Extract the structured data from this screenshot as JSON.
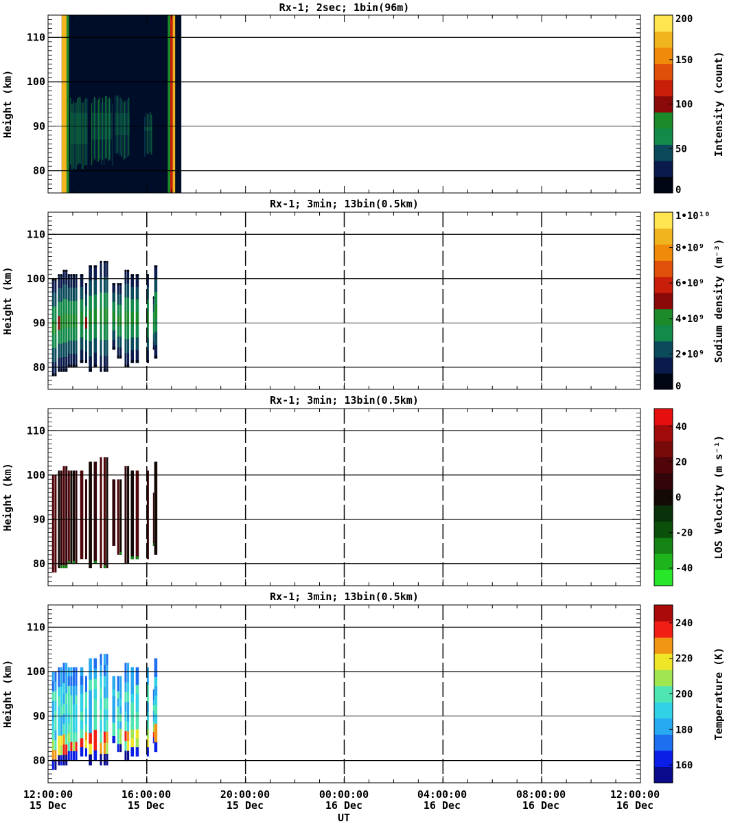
{
  "chart_data": [
    {
      "type": "heatmap",
      "title": "Rx-1;  2sec; 1bin(96m)",
      "ylabel": "Height (km)",
      "ylim": [
        75,
        115
      ],
      "yticks": [
        80,
        90,
        100,
        110
      ],
      "colorbar": {
        "label": "Intensity (count)",
        "range": [
          0,
          200
        ],
        "ticks": [
          "0",
          "50",
          "100",
          "150",
          "200"
        ],
        "tick_values": [
          0,
          50,
          100,
          150,
          200
        ],
        "colors": [
          "#000514",
          "#0a1a4a",
          "#0b4a5a",
          "#138a4a",
          "#1a8a2a",
          "#8a0a0a",
          "#c81e0a",
          "#e0500a",
          "#f08a0a",
          "#f0b41e",
          "#ffe650"
        ]
      },
      "background": "#000d28",
      "observation_window_hours": [
        0.4,
        5.4
      ],
      "bands": [
        {
          "start": 0.4,
          "end": 0.55,
          "top": 115,
          "bottom": 75,
          "color": "#ffffff"
        },
        {
          "start": 0.55,
          "end": 0.75,
          "top": 115,
          "bottom": 75,
          "color": "#f0b41e"
        },
        {
          "start": 0.75,
          "end": 0.85,
          "top": 115,
          "bottom": 75,
          "color": "#1a8a2a"
        },
        {
          "start": 4.85,
          "end": 4.95,
          "top": 115,
          "bottom": 75,
          "color": "#1a8a2a"
        },
        {
          "start": 4.95,
          "end": 5.05,
          "top": 115,
          "bottom": 75,
          "color": "#c81e0a"
        },
        {
          "start": 5.05,
          "end": 5.15,
          "top": 115,
          "bottom": 75,
          "color": "#f0b41e"
        }
      ],
      "layer_segments": [
        {
          "start": 0.9,
          "end": 1.6,
          "top": 97,
          "bottom": 82
        },
        {
          "start": 1.75,
          "end": 2.6,
          "top": 97,
          "bottom": 83
        },
        {
          "start": 2.7,
          "end": 3.3,
          "top": 97,
          "bottom": 84
        },
        {
          "start": 3.9,
          "end": 4.2,
          "top": 94,
          "bottom": 85
        }
      ]
    },
    {
      "type": "heatmap",
      "title": "Rx-1; 3min; 13bin(0.5km)",
      "ylabel": "Height (km)",
      "ylim": [
        75,
        115
      ],
      "yticks": [
        80,
        90,
        100,
        110
      ],
      "colorbar": {
        "label": "Sodium density (m⁻³)",
        "range": [
          0,
          10000000000
        ],
        "ticks": [
          "0",
          "2•10⁹",
          "4•10⁹",
          "6•10⁹",
          "8•10⁹",
          "1•10¹⁰"
        ],
        "tick_values": [
          0,
          2000000000,
          4000000000,
          6000000000,
          8000000000,
          10000000000
        ],
        "colors": [
          "#000514",
          "#0a1a4a",
          "#0b4a5a",
          "#138a4a",
          "#1a8a2a",
          "#8a0a0a",
          "#c81e0a",
          "#e0500a",
          "#f08a0a",
          "#f0b41e",
          "#ffe650"
        ]
      },
      "profiles": [
        {
          "start": 0.16,
          "end": 0.36,
          "top": 100,
          "bottom": 78
        },
        {
          "start": 0.4,
          "end": 0.6,
          "top": 101,
          "bottom": 79
        },
        {
          "start": 0.6,
          "end": 0.8,
          "top": 102,
          "bottom": 79
        },
        {
          "start": 0.8,
          "end": 1.0,
          "top": 101,
          "bottom": 80
        },
        {
          "start": 1.0,
          "end": 1.2,
          "top": 101,
          "bottom": 80
        },
        {
          "start": 1.3,
          "end": 1.45,
          "top": 101,
          "bottom": 81
        },
        {
          "start": 1.5,
          "end": 1.6,
          "top": 99,
          "bottom": 81
        },
        {
          "start": 1.65,
          "end": 1.8,
          "top": 103,
          "bottom": 79
        },
        {
          "start": 1.85,
          "end": 2.0,
          "top": 103,
          "bottom": 80
        },
        {
          "start": 2.1,
          "end": 2.2,
          "top": 104,
          "bottom": 79
        },
        {
          "start": 2.25,
          "end": 2.45,
          "top": 104,
          "bottom": 79
        },
        {
          "start": 2.6,
          "end": 2.75,
          "top": 99,
          "bottom": 84
        },
        {
          "start": 2.8,
          "end": 3.0,
          "top": 99,
          "bottom": 82
        },
        {
          "start": 3.1,
          "end": 3.3,
          "top": 102,
          "bottom": 80
        },
        {
          "start": 3.35,
          "end": 3.5,
          "top": 101,
          "bottom": 81
        },
        {
          "start": 3.55,
          "end": 3.7,
          "top": 101,
          "bottom": 81
        },
        {
          "start": 4.0,
          "end": 4.1,
          "top": 101,
          "bottom": 81
        },
        {
          "start": 4.25,
          "end": 4.3,
          "top": 96,
          "bottom": 84
        },
        {
          "start": 4.3,
          "end": 4.45,
          "top": 103,
          "bottom": 82
        }
      ]
    },
    {
      "type": "heatmap",
      "title": "Rx-1; 3min; 13bin(0.5km)",
      "ylabel": "Height (km)",
      "ylim": [
        75,
        115
      ],
      "yticks": [
        80,
        90,
        100,
        110
      ],
      "colorbar": {
        "label": "LOS Velocity (m s⁻¹)",
        "range": [
          -50,
          50
        ],
        "ticks": [
          "-40",
          "-20",
          "0",
          "20",
          "40"
        ],
        "tick_values": [
          -40,
          -20,
          0,
          20,
          40
        ],
        "colors": [
          "#28e628",
          "#1eb41e",
          "#148214",
          "#0a500a",
          "#0a320a",
          "#140a05",
          "#32050a",
          "#50050a",
          "#780a0a",
          "#a00a0a",
          "#e60f0f"
        ]
      },
      "profiles": [
        {
          "start": 0.16,
          "end": 0.36,
          "top": 100,
          "bottom": 78
        },
        {
          "start": 0.4,
          "end": 0.6,
          "top": 101,
          "bottom": 79
        },
        {
          "start": 0.6,
          "end": 0.8,
          "top": 102,
          "bottom": 79
        },
        {
          "start": 0.8,
          "end": 1.0,
          "top": 101,
          "bottom": 80
        },
        {
          "start": 1.0,
          "end": 1.2,
          "top": 101,
          "bottom": 80
        },
        {
          "start": 1.3,
          "end": 1.45,
          "top": 101,
          "bottom": 81
        },
        {
          "start": 1.5,
          "end": 1.6,
          "top": 99,
          "bottom": 81
        },
        {
          "start": 1.65,
          "end": 1.8,
          "top": 103,
          "bottom": 79
        },
        {
          "start": 1.85,
          "end": 2.0,
          "top": 103,
          "bottom": 80
        },
        {
          "start": 2.1,
          "end": 2.2,
          "top": 104,
          "bottom": 79
        },
        {
          "start": 2.25,
          "end": 2.45,
          "top": 104,
          "bottom": 79
        },
        {
          "start": 2.6,
          "end": 2.75,
          "top": 99,
          "bottom": 84
        },
        {
          "start": 2.8,
          "end": 3.0,
          "top": 99,
          "bottom": 82
        },
        {
          "start": 3.1,
          "end": 3.3,
          "top": 102,
          "bottom": 80
        },
        {
          "start": 3.35,
          "end": 3.5,
          "top": 101,
          "bottom": 81
        },
        {
          "start": 3.55,
          "end": 3.7,
          "top": 101,
          "bottom": 81
        },
        {
          "start": 4.0,
          "end": 4.1,
          "top": 101,
          "bottom": 81
        },
        {
          "start": 4.25,
          "end": 4.3,
          "top": 96,
          "bottom": 84
        },
        {
          "start": 4.3,
          "end": 4.45,
          "top": 103,
          "bottom": 82
        }
      ]
    },
    {
      "type": "heatmap",
      "title": "Rx-1; 3min; 13bin(0.5km)",
      "ylabel": "Height (km)",
      "ylim": [
        75,
        115
      ],
      "yticks": [
        80,
        90,
        100,
        110
      ],
      "colorbar": {
        "label": "Temperature (K)",
        "range": [
          150,
          250
        ],
        "ticks": [
          "160",
          "180",
          "200",
          "220",
          "240"
        ],
        "tick_values": [
          160,
          180,
          200,
          220,
          240
        ],
        "colors": [
          "#0a0a8c",
          "#0a1ee6",
          "#1e6ef0",
          "#28aaf0",
          "#32d2e6",
          "#50e6b4",
          "#a0e650",
          "#f0e628",
          "#f09614",
          "#f01e14",
          "#aa0a0a"
        ]
      },
      "profiles": [
        {
          "start": 0.16,
          "end": 0.36,
          "top": 100,
          "bottom": 78
        },
        {
          "start": 0.4,
          "end": 0.6,
          "top": 101,
          "bottom": 79
        },
        {
          "start": 0.6,
          "end": 0.8,
          "top": 102,
          "bottom": 79
        },
        {
          "start": 0.8,
          "end": 1.0,
          "top": 101,
          "bottom": 80
        },
        {
          "start": 1.0,
          "end": 1.2,
          "top": 101,
          "bottom": 80
        },
        {
          "start": 1.3,
          "end": 1.45,
          "top": 101,
          "bottom": 81
        },
        {
          "start": 1.5,
          "end": 1.6,
          "top": 99,
          "bottom": 81
        },
        {
          "start": 1.65,
          "end": 1.8,
          "top": 103,
          "bottom": 79
        },
        {
          "start": 1.85,
          "end": 2.0,
          "top": 103,
          "bottom": 80
        },
        {
          "start": 2.1,
          "end": 2.2,
          "top": 104,
          "bottom": 79
        },
        {
          "start": 2.25,
          "end": 2.45,
          "top": 104,
          "bottom": 79
        },
        {
          "start": 2.6,
          "end": 2.75,
          "top": 99,
          "bottom": 84
        },
        {
          "start": 2.8,
          "end": 3.0,
          "top": 99,
          "bottom": 82
        },
        {
          "start": 3.1,
          "end": 3.3,
          "top": 102,
          "bottom": 80
        },
        {
          "start": 3.35,
          "end": 3.5,
          "top": 101,
          "bottom": 81
        },
        {
          "start": 3.55,
          "end": 3.7,
          "top": 101,
          "bottom": 81
        },
        {
          "start": 4.0,
          "end": 4.1,
          "top": 101,
          "bottom": 81
        },
        {
          "start": 4.25,
          "end": 4.3,
          "top": 96,
          "bottom": 84
        },
        {
          "start": 4.3,
          "end": 4.45,
          "top": 103,
          "bottom": 82
        }
      ]
    }
  ],
  "x_axis": {
    "label": "UT",
    "xlim_hours": [
      0,
      24
    ],
    "ticks": [
      {
        "time": "12:00:00",
        "date": "15 Dec"
      },
      {
        "time": "16:00:00",
        "date": "15 Dec"
      },
      {
        "time": "20:00:00",
        "date": "15 Dec"
      },
      {
        "time": "00:00:00",
        "date": "16 Dec"
      },
      {
        "time": "04:00:00",
        "date": "16 Dec"
      },
      {
        "time": "08:00:00",
        "date": "16 Dec"
      },
      {
        "time": "12:00:00",
        "date": "16 Dec"
      }
    ]
  }
}
